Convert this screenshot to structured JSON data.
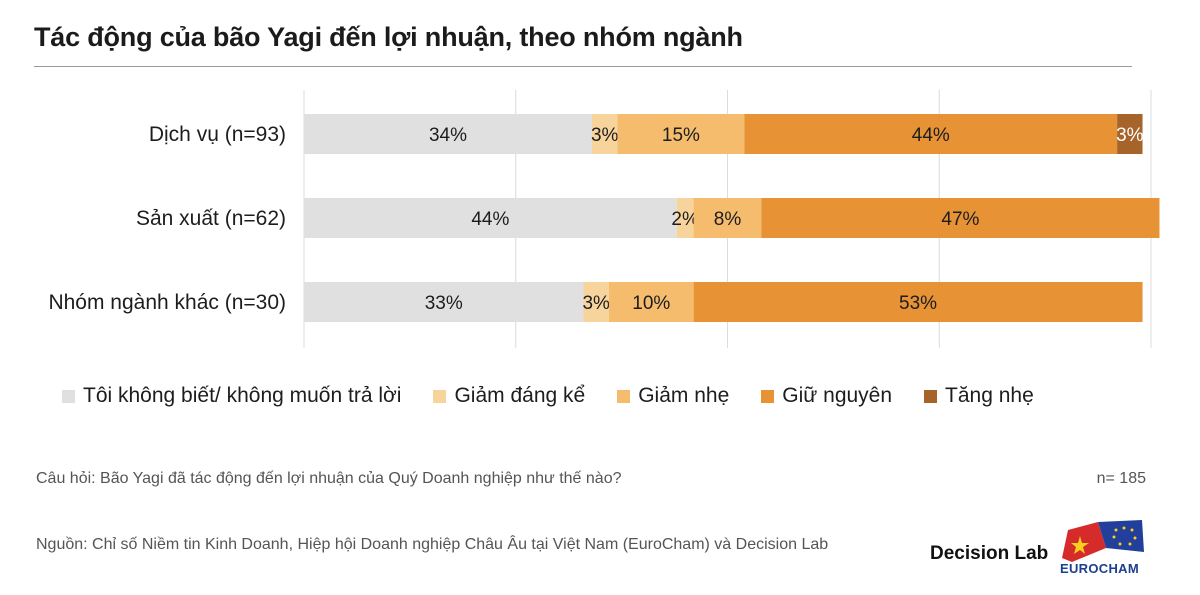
{
  "title": "Tác động của bão Yagi đến lợi nhuận, theo nhóm ngành",
  "colors": {
    "tôi_không_biết": "#e0e0e0",
    "giảm_đáng_kể": "#f7d49b",
    "giảm_nhẹ": "#f4bc6c",
    "giữ_nguyên": "#e69235",
    "tăng_nhẹ": "#a7642a"
  },
  "chart_data": {
    "type": "bar",
    "orientation": "horizontal",
    "stacked": true,
    "categories": [
      "Dịch vụ (n=93)",
      "Sản xuất (n=62)",
      "Nhóm ngành khác (n=30)"
    ],
    "series": [
      {
        "name": "Tôi không biết/ không muốn trả lời",
        "color": "#e0e0e0",
        "values": [
          34,
          44,
          33
        ]
      },
      {
        "name": "Giảm đáng kể",
        "color": "#f7d49b",
        "values": [
          3,
          2,
          3
        ]
      },
      {
        "name": "Giảm nhẹ",
        "color": "#f4bc6c",
        "values": [
          15,
          8,
          10
        ]
      },
      {
        "name": "Giữ nguyên",
        "color": "#e69235",
        "values": [
          44,
          47,
          53
        ]
      },
      {
        "name": "Tăng nhẹ",
        "color": "#a7642a",
        "values": [
          3,
          0,
          0
        ]
      }
    ],
    "labels": [
      [
        "34%",
        "44%",
        "33%"
      ],
      [
        "3%",
        "2%",
        "3%"
      ],
      [
        "15%",
        "8%",
        "10%"
      ],
      [
        "44%",
        "47%",
        "53%"
      ],
      [
        "3%",
        "",
        ""
      ]
    ],
    "xlim": [
      0,
      100
    ],
    "grid": true,
    "legend": "bottom"
  },
  "footer": {
    "question": "Câu hỏi: Bão Yagi đã tác động đến lợi nhuận của Quý Doanh nghiệp như thế nào?",
    "n_total": "n= 185",
    "source": "Nguồn: Chỉ số Niềm tin Kinh Doanh, Hiệp hội Doanh nghiệp Châu Âu tại Việt Nam (EuroCham) và Decision Lab",
    "brand": "Decision Lab",
    "logo_text": "EUROCHAM"
  }
}
